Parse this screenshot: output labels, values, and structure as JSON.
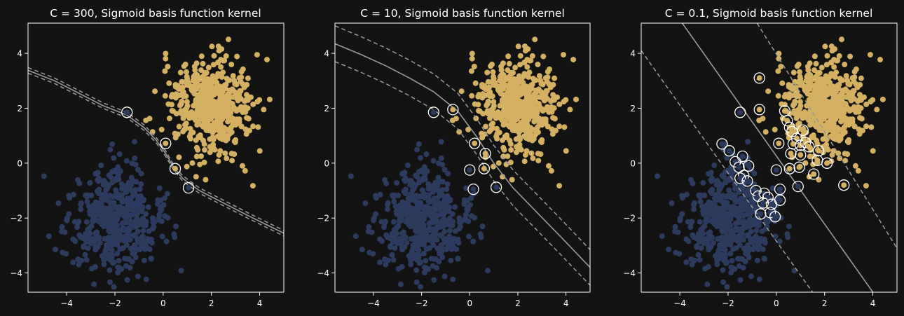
{
  "figure": {
    "background": "#131313",
    "text_color": "#ffffff"
  },
  "chart_data": [
    {
      "type": "scatter",
      "title": "C = 300, Sigmoid basis function kernel",
      "xlim": [
        -5.6,
        5.0
      ],
      "ylim": [
        -4.7,
        5.1
      ],
      "xticks": [
        -4,
        -2,
        0,
        2,
        4
      ],
      "yticks": [
        -4,
        -2,
        0,
        2,
        4
      ],
      "grid": false,
      "classes": [
        {
          "name": "",
          "color": "#2c3a5e",
          "center": [
            -2.0,
            -2.1
          ],
          "spread": [
            0.95,
            0.95
          ],
          "count": 500
        },
        {
          "name": "",
          "color": "#d4b063",
          "center": [
            2.0,
            2.05
          ],
          "spread": [
            0.85,
            0.95
          ],
          "count": 500
        }
      ],
      "decision_boundary": [
        [
          -5.6,
          3.38
        ],
        [
          -4.5,
          3.0
        ],
        [
          -3.5,
          2.55
        ],
        [
          -2.5,
          2.1
        ],
        [
          -1.5,
          1.75
        ],
        [
          -0.8,
          1.3
        ],
        [
          -0.3,
          0.85
        ],
        [
          0.1,
          0.35
        ],
        [
          0.4,
          -0.1
        ],
        [
          0.8,
          -0.55
        ],
        [
          1.5,
          -1.0
        ],
        [
          2.5,
          -1.45
        ],
        [
          3.5,
          -1.9
        ],
        [
          4.3,
          -2.25
        ],
        [
          5.0,
          -2.55
        ]
      ],
      "margins": [
        [
          [
            -5.6,
            3.48
          ],
          [
            -4.5,
            3.1
          ],
          [
            -3.5,
            2.65
          ],
          [
            -2.5,
            2.2
          ],
          [
            -1.5,
            1.85
          ],
          [
            -0.8,
            1.4
          ],
          [
            -0.3,
            0.95
          ],
          [
            0.1,
            0.45
          ],
          [
            0.4,
            0.0
          ],
          [
            0.8,
            -0.45
          ],
          [
            1.5,
            -0.9
          ],
          [
            2.5,
            -1.35
          ],
          [
            3.5,
            -1.8
          ],
          [
            4.3,
            -2.15
          ],
          [
            5.0,
            -2.45
          ]
        ],
        [
          [
            -5.6,
            3.28
          ],
          [
            -4.5,
            2.9
          ],
          [
            -3.5,
            2.45
          ],
          [
            -2.5,
            2.0
          ],
          [
            -1.5,
            1.65
          ],
          [
            -0.8,
            1.2
          ],
          [
            -0.3,
            0.75
          ],
          [
            0.1,
            0.25
          ],
          [
            0.4,
            -0.2
          ],
          [
            0.8,
            -0.65
          ],
          [
            1.5,
            -1.1
          ],
          [
            2.5,
            -1.55
          ],
          [
            3.5,
            -2.0
          ],
          [
            4.3,
            -2.35
          ],
          [
            5.0,
            -2.65
          ]
        ]
      ],
      "support_vectors": [
        {
          "x": -1.5,
          "y": 1.85,
          "cls": 0
        },
        {
          "x": 0.1,
          "y": 0.72,
          "cls": 1
        },
        {
          "x": 0.5,
          "y": -0.2,
          "cls": 1
        },
        {
          "x": 1.05,
          "y": -0.9,
          "cls": 0
        }
      ]
    },
    {
      "type": "scatter",
      "title": "C = 10, Sigmoid basis function kernel",
      "xlim": [
        -5.6,
        5.0
      ],
      "ylim": [
        -4.7,
        5.1
      ],
      "xticks": [
        -4,
        -2,
        0,
        2,
        4
      ],
      "yticks": [
        -4,
        -2,
        0,
        2,
        4
      ],
      "grid": false,
      "classes": [
        {
          "name": "",
          "color": "#2c3a5e",
          "center": [
            -2.0,
            -2.1
          ],
          "spread": [
            0.95,
            0.95
          ],
          "count": 500
        },
        {
          "name": "",
          "color": "#d4b063",
          "center": [
            2.0,
            2.05
          ],
          "spread": [
            0.85,
            0.95
          ],
          "count": 500
        }
      ],
      "decision_boundary": [
        [
          -5.6,
          4.35
        ],
        [
          -4.5,
          3.95
        ],
        [
          -3.5,
          3.55
        ],
        [
          -2.5,
          3.1
        ],
        [
          -1.5,
          2.6
        ],
        [
          -0.5,
          1.9
        ],
        [
          0.3,
          0.95
        ],
        [
          1.0,
          0.0
        ],
        [
          1.8,
          -0.9
        ],
        [
          2.8,
          -1.8
        ],
        [
          3.8,
          -2.7
        ],
        [
          5.0,
          -3.8
        ]
      ],
      "margins": [
        [
          [
            -5.6,
            5.0
          ],
          [
            -4.5,
            4.6
          ],
          [
            -3.5,
            4.2
          ],
          [
            -2.5,
            3.75
          ],
          [
            -1.5,
            3.25
          ],
          [
            -0.5,
            2.55
          ],
          [
            0.3,
            1.6
          ],
          [
            1.0,
            0.65
          ],
          [
            1.8,
            -0.25
          ],
          [
            2.8,
            -1.15
          ],
          [
            3.8,
            -2.05
          ],
          [
            5.0,
            -3.15
          ]
        ],
        [
          [
            -5.6,
            3.7
          ],
          [
            -4.5,
            3.3
          ],
          [
            -3.5,
            2.9
          ],
          [
            -2.5,
            2.45
          ],
          [
            -1.5,
            1.95
          ],
          [
            -0.5,
            1.25
          ],
          [
            0.3,
            0.3
          ],
          [
            1.0,
            -0.65
          ],
          [
            1.8,
            -1.55
          ],
          [
            2.8,
            -2.45
          ],
          [
            3.8,
            -3.35
          ],
          [
            5.0,
            -4.45
          ]
        ]
      ],
      "support_vectors": [
        {
          "x": -1.5,
          "y": 1.85,
          "cls": 0
        },
        {
          "x": -0.7,
          "y": 1.95,
          "cls": 1
        },
        {
          "x": 0.2,
          "y": 0.72,
          "cls": 1
        },
        {
          "x": 0.65,
          "y": 0.35,
          "cls": 1
        },
        {
          "x": 0.0,
          "y": -0.25,
          "cls": 0
        },
        {
          "x": 0.6,
          "y": -0.2,
          "cls": 1
        },
        {
          "x": 0.15,
          "y": -0.95,
          "cls": 0
        },
        {
          "x": 1.1,
          "y": -0.88,
          "cls": 0
        }
      ]
    },
    {
      "type": "scatter",
      "title": "C = 0.1, Sigmoid basis function kernel",
      "xlim": [
        -5.6,
        5.0
      ],
      "ylim": [
        -4.7,
        5.1
      ],
      "xticks": [
        -4,
        -2,
        0,
        2,
        4
      ],
      "yticks": [
        -4,
        -2,
        0,
        2,
        4
      ],
      "grid": false,
      "classes": [
        {
          "name": "",
          "color": "#2c3a5e",
          "center": [
            -2.0,
            -2.1
          ],
          "spread": [
            0.95,
            0.95
          ],
          "count": 500
        },
        {
          "name": "",
          "color": "#d4b063",
          "center": [
            2.0,
            2.05
          ],
          "spread": [
            0.85,
            0.95
          ],
          "count": 500
        }
      ],
      "decision_boundary": [
        [
          -3.9,
          5.1
        ],
        [
          4.0,
          -4.7
        ]
      ],
      "margins": [
        [
          [
            -0.8,
            5.1
          ],
          [
            5.0,
            -3.1
          ]
        ],
        [
          [
            -5.6,
            4.1
          ],
          [
            1.5,
            -4.7
          ]
        ]
      ],
      "support_vectors": [
        {
          "x": -0.7,
          "y": 3.1,
          "cls": 1
        },
        {
          "x": -0.7,
          "y": 1.95,
          "cls": 1
        },
        {
          "x": -1.5,
          "y": 1.85,
          "cls": 0
        },
        {
          "x": 0.35,
          "y": 1.9,
          "cls": 1
        },
        {
          "x": 0.45,
          "y": 1.55,
          "cls": 1
        },
        {
          "x": 0.55,
          "y": 1.3,
          "cls": 1
        },
        {
          "x": 0.65,
          "y": 1.15,
          "cls": 1
        },
        {
          "x": 1.1,
          "y": 1.2,
          "cls": 1
        },
        {
          "x": 0.85,
          "y": 0.9,
          "cls": 1
        },
        {
          "x": 0.1,
          "y": 0.72,
          "cls": 1
        },
        {
          "x": 0.7,
          "y": 0.7,
          "cls": 1
        },
        {
          "x": 1.0,
          "y": 0.65,
          "cls": 1
        },
        {
          "x": 1.2,
          "y": 0.75,
          "cls": 1
        },
        {
          "x": 1.35,
          "y": 0.6,
          "cls": 1
        },
        {
          "x": 1.75,
          "y": 0.45,
          "cls": 1
        },
        {
          "x": 0.6,
          "y": 0.35,
          "cls": 1
        },
        {
          "x": 1.0,
          "y": 0.3,
          "cls": 1
        },
        {
          "x": 1.7,
          "y": 0.1,
          "cls": 1
        },
        {
          "x": 2.1,
          "y": 0.0,
          "cls": 1
        },
        {
          "x": 0.95,
          "y": -0.15,
          "cls": 1
        },
        {
          "x": 0.9,
          "y": -0.85,
          "cls": 0
        },
        {
          "x": 1.55,
          "y": -0.4,
          "cls": 1
        },
        {
          "x": 2.8,
          "y": -0.8,
          "cls": 1
        },
        {
          "x": 0.55,
          "y": -0.2,
          "cls": 1
        },
        {
          "x": 0.0,
          "y": -0.25,
          "cls": 0
        },
        {
          "x": 0.15,
          "y": -0.95,
          "cls": 0
        },
        {
          "x": 0.15,
          "y": -1.35,
          "cls": 0
        },
        {
          "x": -2.25,
          "y": 0.7,
          "cls": 0
        },
        {
          "x": -1.95,
          "y": 0.45,
          "cls": 0
        },
        {
          "x": -1.4,
          "y": 0.25,
          "cls": 0
        },
        {
          "x": -1.7,
          "y": 0.05,
          "cls": 0
        },
        {
          "x": -1.15,
          "y": -0.1,
          "cls": 0
        },
        {
          "x": -1.55,
          "y": -0.15,
          "cls": 0
        },
        {
          "x": -1.35,
          "y": -0.45,
          "cls": 0
        },
        {
          "x": -1.5,
          "y": -0.55,
          "cls": 0
        },
        {
          "x": -1.2,
          "y": -0.65,
          "cls": 0
        },
        {
          "x": -0.85,
          "y": -1.0,
          "cls": 0
        },
        {
          "x": -0.75,
          "y": -1.2,
          "cls": 0
        },
        {
          "x": -0.5,
          "y": -1.1,
          "cls": 0
        },
        {
          "x": -0.35,
          "y": -1.25,
          "cls": 0
        },
        {
          "x": -0.55,
          "y": -1.45,
          "cls": 0
        },
        {
          "x": -0.2,
          "y": -1.5,
          "cls": 0
        },
        {
          "x": -0.65,
          "y": -1.85,
          "cls": 0
        },
        {
          "x": -0.25,
          "y": -1.8,
          "cls": 0
        },
        {
          "x": -0.05,
          "y": -1.95,
          "cls": 0
        }
      ]
    }
  ]
}
